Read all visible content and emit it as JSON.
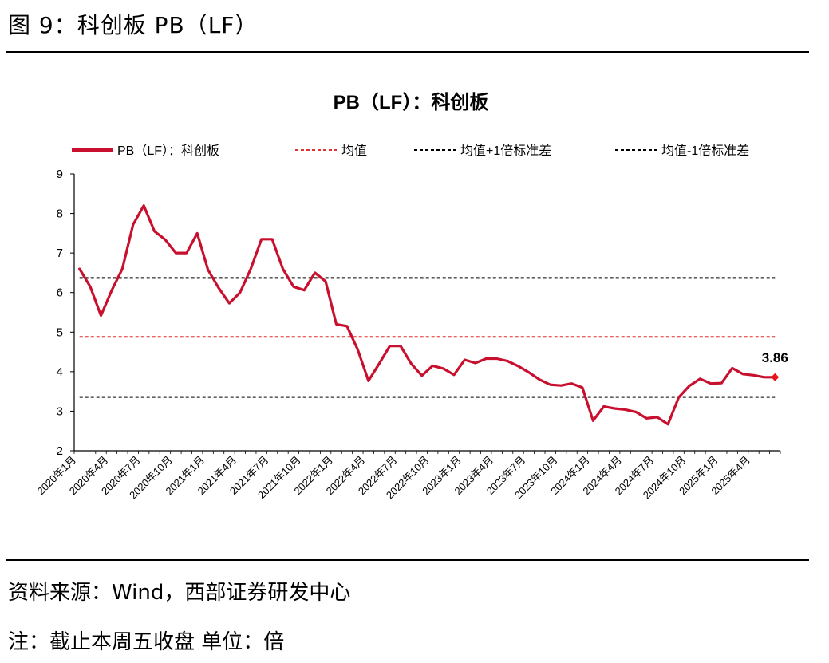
{
  "figure": {
    "caption": "图 9：科创板 PB（LF）",
    "source": "资料来源：Wind，西部证券研发中心",
    "note": "注：截止本周五收盘 单位：倍"
  },
  "colors": {
    "series": "#c8102e",
    "mean": "#e03030",
    "band": "#000000",
    "last_point": "#e8161b"
  },
  "chart_data": {
    "type": "line",
    "title": "PB（LF）：科创板",
    "legend_position": "top",
    "grid": false,
    "ylim": [
      2,
      9
    ],
    "yticks": [
      2,
      3,
      4,
      5,
      6,
      7,
      8,
      9
    ],
    "xtick_labels": [
      "2020年1月",
      "2020年4月",
      "2020年7月",
      "2020年10月",
      "2021年1月",
      "2021年4月",
      "2021年7月",
      "2021年10月",
      "2022年1月",
      "2022年4月",
      "2022年7月",
      "2022年10月",
      "2023年1月",
      "2023年4月",
      "2023年7月",
      "2023年10月",
      "2024年1月",
      "2024年4月",
      "2024年7月",
      "2024年10月",
      "2025年1月",
      "2025年4月"
    ],
    "series": [
      {
        "name": "PB（LF）：科创板",
        "values": [
          6.6,
          6.15,
          5.42,
          6.05,
          6.6,
          7.72,
          8.2,
          7.55,
          7.34,
          7.0,
          7.0,
          7.5,
          6.58,
          6.12,
          5.73,
          6.0,
          6.6,
          7.35,
          7.35,
          6.6,
          6.15,
          6.06,
          6.5,
          6.28,
          5.2,
          5.15,
          4.56,
          3.77,
          4.2,
          4.65,
          4.65,
          4.2,
          3.9,
          4.15,
          4.08,
          3.92,
          4.3,
          4.22,
          4.33,
          4.33,
          4.27,
          4.14,
          3.98,
          3.8,
          3.67,
          3.65,
          3.7,
          3.6,
          2.76,
          3.12,
          3.07,
          3.04,
          2.98,
          2.82,
          2.85,
          2.67,
          3.35,
          3.64,
          3.82,
          3.7,
          3.71,
          4.09,
          3.94,
          3.91,
          3.86,
          3.86
        ]
      },
      {
        "name": "均值",
        "value": 4.88
      },
      {
        "name": "均值+1倍标准差",
        "value": 6.37
      },
      {
        "name": "均值-1倍标准差",
        "value": 3.36
      }
    ],
    "last_value_label": "3.86"
  }
}
